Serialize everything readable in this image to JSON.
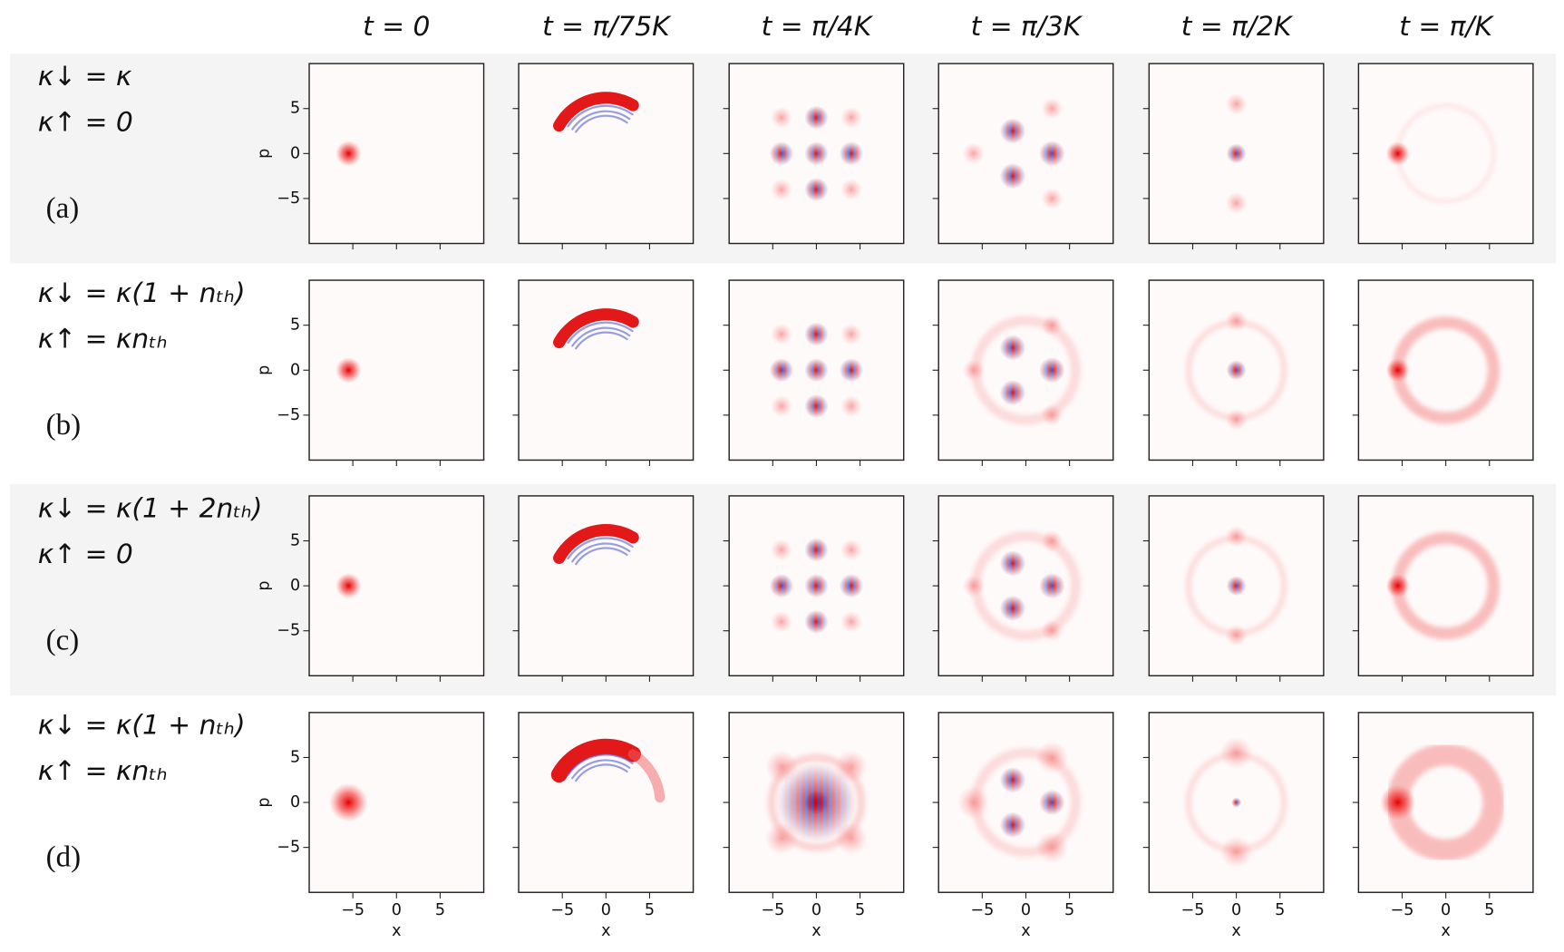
{
  "column_titles": [
    "t = 0",
    "t = π/75K",
    "t = π/4K",
    "t = π/3K",
    "t = π/2K",
    "t = π/K"
  ],
  "rows": [
    {
      "lines": [
        "κ↓ = κ",
        "κ↑ = 0"
      ],
      "tag": "(a)"
    },
    {
      "lines": [
        "κ↓ = κ(1 + nₜₕ)",
        "κ↑ = κnₜₕ"
      ],
      "tag": "(b)"
    },
    {
      "lines": [
        "κ↓ = κ(1 + 2nₜₕ)",
        "κ↑ = 0"
      ],
      "tag": "(c)"
    },
    {
      "lines": [
        "κ↓ = κ(1 + nₜₕ)",
        "κ↑ = κnₜₕ"
      ],
      "tag": "(d)"
    }
  ],
  "axes": {
    "xlabel": "x",
    "ylabel": "p",
    "xlim": [
      -10,
      10
    ],
    "ylim": [
      -10,
      10
    ],
    "xticks": [
      {
        "value": -5,
        "label": "−5"
      },
      0,
      5
    ],
    "yticks": [
      5,
      0,
      {
        "value": -5,
        "label": "−5"
      }
    ]
  }
}
